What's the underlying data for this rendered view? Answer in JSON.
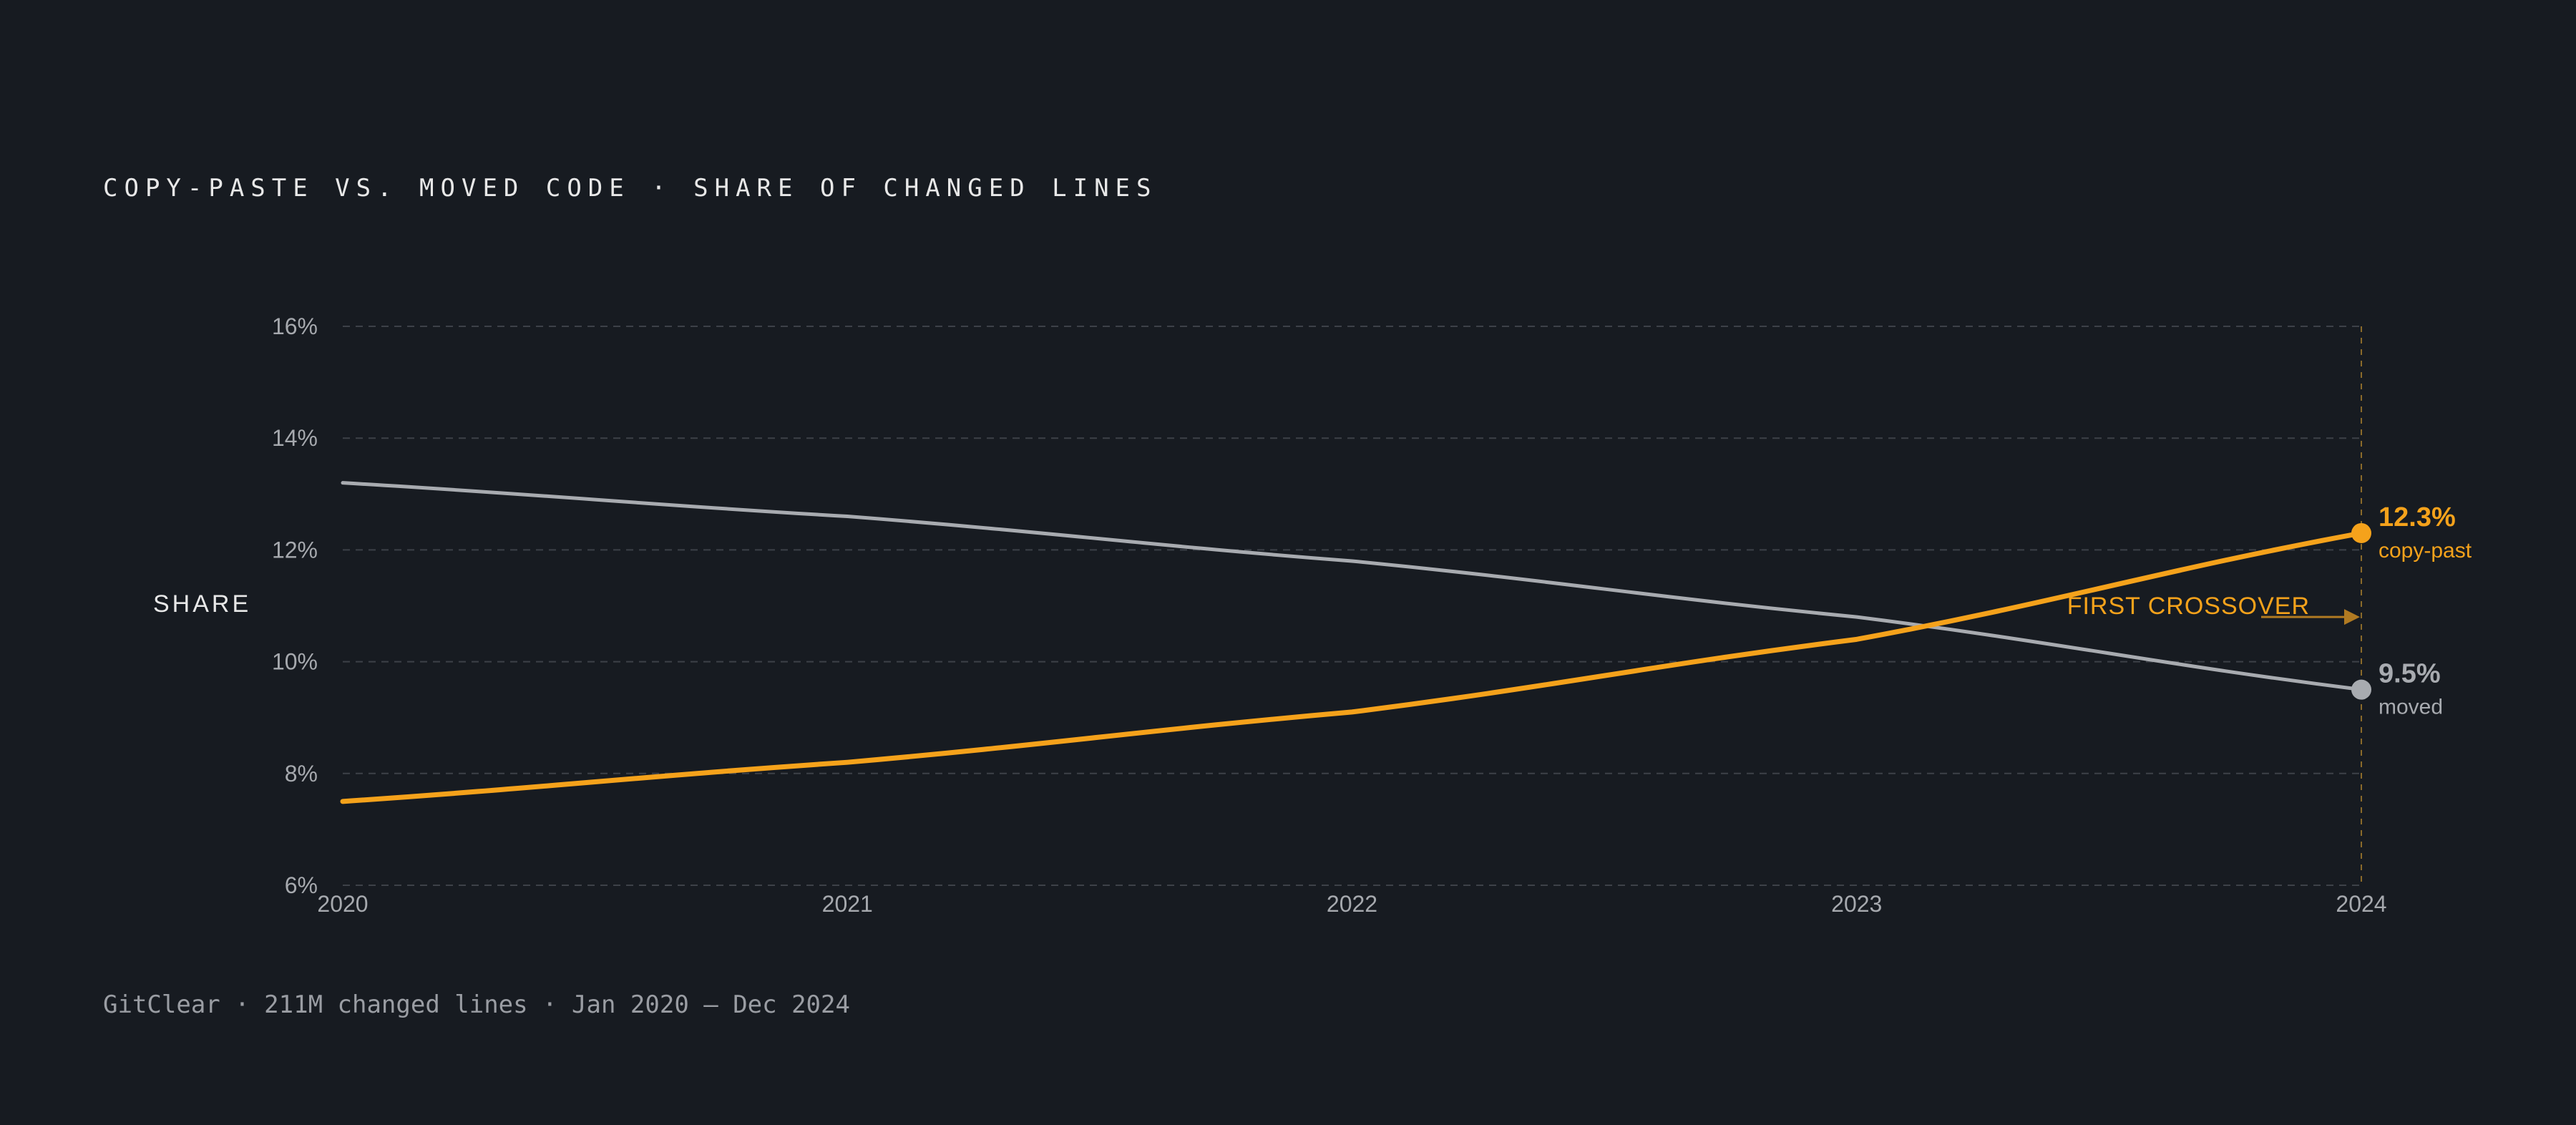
{
  "chart_data": {
    "type": "line",
    "title": "COPY-PASTE VS. MOVED CODE · SHARE OF CHANGED LINES",
    "ylabel": "SHARE",
    "xlabel": "",
    "x": [
      2020,
      2021,
      2022,
      2023,
      2024
    ],
    "x_tick_labels": [
      "2020",
      "2021",
      "2022",
      "2023",
      "2024"
    ],
    "ylim": [
      6,
      16
    ],
    "y_ticks": [
      6,
      8,
      10,
      12,
      14,
      16
    ],
    "y_tick_labels": [
      "6%",
      "8%",
      "10%",
      "12%",
      "14%",
      "16%"
    ],
    "grid": "horizontal dashed",
    "series": [
      {
        "name": "copy-past",
        "color": "#f5a21b",
        "values": [
          7.5,
          8.2,
          9.1,
          10.4,
          12.3
        ],
        "end_label": "12.3%"
      },
      {
        "name": "moved",
        "color": "#a8abb0",
        "values": [
          13.2,
          12.6,
          11.8,
          10.8,
          9.5
        ],
        "end_label": "9.5%"
      }
    ],
    "annotation": {
      "text": "FIRST CROSSOVER",
      "color": "#f5a21b",
      "x_value": 2024,
      "y_value": 10.8
    },
    "footnote": "GitClear · 211M changed lines · Jan 2020 – Dec 2024"
  },
  "colors": {
    "background": "#171b21",
    "grid": "#3d4148",
    "tick_text": "#a6a9ae",
    "title_text": "#e8e8e8"
  }
}
